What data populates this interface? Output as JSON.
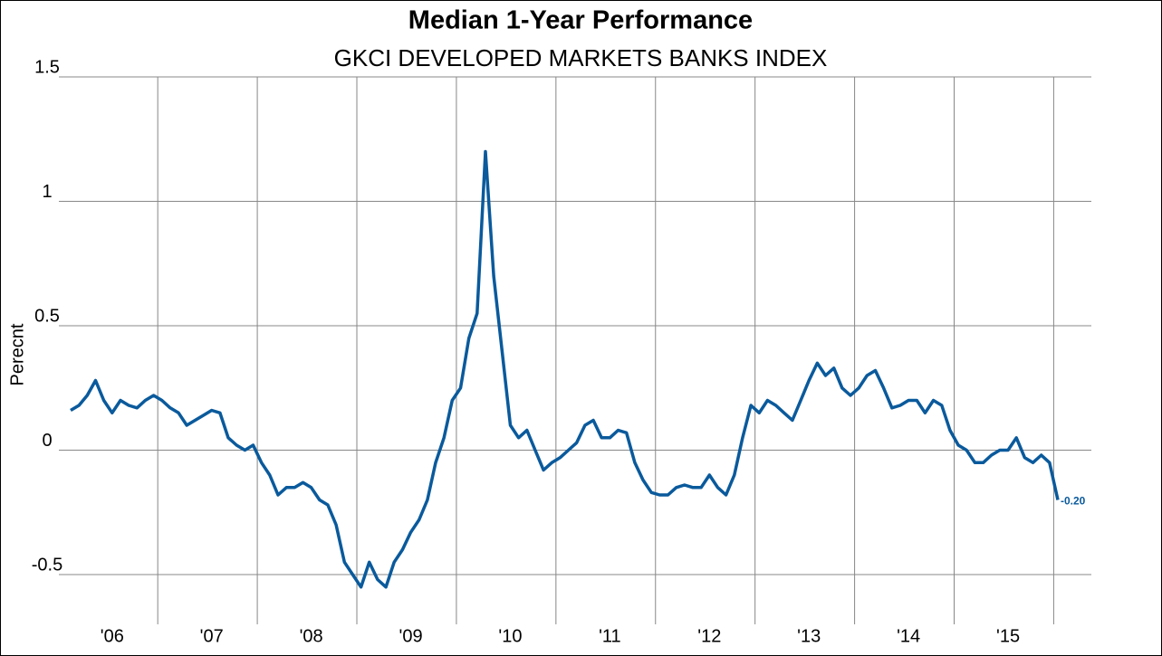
{
  "chart_data": {
    "type": "line",
    "title": "Median 1-Year Performance",
    "subtitle": "GKCI DEVELOPED MARKETS BANKS INDEX",
    "y_label": "Perecnt",
    "categories": [
      null,
      null,
      null,
      null,
      null,
      "'06",
      null,
      null,
      null,
      null,
      null,
      null,
      null,
      null,
      null,
      null,
      null,
      "'07",
      null,
      null,
      null,
      null,
      null,
      null,
      null,
      null,
      null,
      null,
      null,
      "'08",
      null,
      null,
      null,
      null,
      null,
      null,
      null,
      null,
      null,
      null,
      null,
      "'09",
      null,
      null,
      null,
      null,
      null,
      null,
      null,
      null,
      null,
      null,
      null,
      "'10",
      null,
      null,
      null,
      null,
      null,
      null,
      null,
      null,
      null,
      null,
      null,
      "'11",
      null,
      null,
      null,
      null,
      null,
      null,
      null,
      null,
      null,
      null,
      null,
      "'12",
      null,
      null,
      null,
      null,
      null,
      null,
      null,
      null,
      null,
      null,
      null,
      "'13",
      null,
      null,
      null,
      null,
      null,
      null,
      null,
      null,
      null,
      null,
      null,
      "'14",
      null,
      null,
      null,
      null,
      null,
      null,
      null,
      null,
      null,
      null,
      null,
      "'15",
      null,
      null,
      null,
      null,
      null,
      null
    ],
    "series": [
      {
        "color": "#0a5a9c",
        "values": [
          0.16,
          0.18,
          0.22,
          0.28,
          0.2,
          0.15,
          0.2,
          0.18,
          0.17,
          0.2,
          0.22,
          0.2,
          0.17,
          0.15,
          0.1,
          0.12,
          0.14,
          0.16,
          0.15,
          0.05,
          0.02,
          0.0,
          0.02,
          -0.05,
          -0.1,
          -0.18,
          -0.15,
          -0.15,
          -0.13,
          -0.15,
          -0.2,
          -0.22,
          -0.3,
          -0.45,
          -0.5,
          -0.55,
          -0.45,
          -0.52,
          -0.55,
          -0.45,
          -0.4,
          -0.33,
          -0.28,
          -0.2,
          -0.05,
          0.05,
          0.2,
          0.25,
          0.45,
          0.55,
          1.2,
          0.7,
          0.4,
          0.1,
          0.05,
          0.08,
          0.0,
          -0.08,
          -0.05,
          -0.03,
          0.0,
          0.03,
          0.1,
          0.12,
          0.05,
          0.05,
          0.08,
          0.07,
          -0.05,
          -0.12,
          -0.17,
          -0.18,
          -0.18,
          -0.15,
          -0.14,
          -0.15,
          -0.15,
          -0.1,
          -0.15,
          -0.18,
          -0.1,
          0.05,
          0.18,
          0.15,
          0.2,
          0.18,
          0.15,
          0.12,
          0.2,
          0.28,
          0.35,
          0.3,
          0.33,
          0.25,
          0.22,
          0.25,
          0.3,
          0.32,
          0.25,
          0.17,
          0.18,
          0.2,
          0.2,
          0.15,
          0.2,
          0.18,
          0.08,
          0.02,
          0.0,
          -0.05,
          -0.05,
          -0.02,
          0.0,
          0.0,
          0.05,
          -0.03,
          -0.05,
          -0.02,
          -0.05,
          -0.2
        ],
        "value_labels": [
          null,
          null,
          null,
          null,
          null,
          null,
          null,
          null,
          null,
          null,
          null,
          null,
          null,
          null,
          null,
          null,
          null,
          null,
          null,
          null,
          null,
          null,
          null,
          null,
          null,
          null,
          null,
          null,
          null,
          null,
          null,
          null,
          null,
          null,
          null,
          null,
          null,
          null,
          null,
          null,
          null,
          null,
          null,
          null,
          null,
          null,
          null,
          null,
          null,
          null,
          null,
          null,
          null,
          null,
          null,
          null,
          null,
          null,
          null,
          null,
          null,
          null,
          null,
          null,
          null,
          null,
          null,
          null,
          null,
          null,
          null,
          null,
          null,
          null,
          null,
          null,
          null,
          null,
          null,
          null,
          null,
          null,
          null,
          null,
          null,
          null,
          null,
          null,
          null,
          null,
          null,
          null,
          null,
          null,
          null,
          null,
          null,
          null,
          null,
          null,
          null,
          null,
          null,
          null,
          null,
          null,
          null,
          null,
          null,
          null,
          null,
          null,
          null,
          null,
          null,
          null,
          null,
          null,
          null,
          "-0.20"
        ]
      }
    ],
    "ylim": [
      -0.7,
      1.5
    ],
    "yticks": [
      -0.5,
      0,
      0.5,
      1,
      1.5
    ],
    "grid": true
  }
}
